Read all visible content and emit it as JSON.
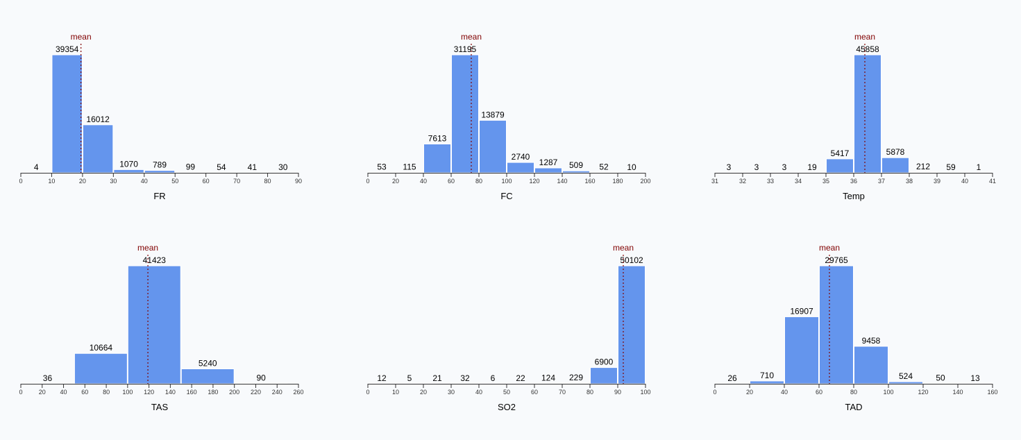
{
  "colors": {
    "bar": "#6495ed",
    "bar_stroke": "#ffffff",
    "mean": "#800000",
    "axis": "#333333",
    "text": "#000000"
  },
  "chart_data": [
    {
      "type": "bar",
      "xlabel": "FR",
      "mean_label": "mean",
      "mean": 19.5,
      "domain": [
        0,
        90
      ],
      "ticks": [
        0,
        10,
        20,
        30,
        40,
        50,
        60,
        70,
        80,
        90
      ],
      "bins": [
        {
          "x0": 0,
          "x1": 10,
          "count": 4
        },
        {
          "x0": 10,
          "x1": 20,
          "count": 39354
        },
        {
          "x0": 20,
          "x1": 30,
          "count": 16012
        },
        {
          "x0": 30,
          "x1": 40,
          "count": 1070
        },
        {
          "x0": 40,
          "x1": 50,
          "count": 789
        },
        {
          "x0": 50,
          "x1": 60,
          "count": 99
        },
        {
          "x0": 60,
          "x1": 70,
          "count": 54
        },
        {
          "x0": 70,
          "x1": 80,
          "count": 41
        },
        {
          "x0": 80,
          "x1": 90,
          "count": 30
        }
      ]
    },
    {
      "type": "bar",
      "xlabel": "FC",
      "mean_label": "mean",
      "mean": 74.5,
      "domain": [
        0,
        200
      ],
      "ticks": [
        0,
        20,
        40,
        60,
        80,
        100,
        120,
        140,
        160,
        180,
        200
      ],
      "bins": [
        {
          "x0": 0,
          "x1": 20,
          "count": 53
        },
        {
          "x0": 20,
          "x1": 40,
          "count": 115
        },
        {
          "x0": 40,
          "x1": 60,
          "count": 7613
        },
        {
          "x0": 60,
          "x1": 80,
          "count": 31195
        },
        {
          "x0": 80,
          "x1": 100,
          "count": 13879
        },
        {
          "x0": 100,
          "x1": 120,
          "count": 2740
        },
        {
          "x0": 120,
          "x1": 140,
          "count": 1287
        },
        {
          "x0": 140,
          "x1": 160,
          "count": 509
        },
        {
          "x0": 160,
          "x1": 180,
          "count": 52
        },
        {
          "x0": 180,
          "x1": 200,
          "count": 10
        }
      ]
    },
    {
      "type": "bar",
      "xlabel": "Temp",
      "mean_label": "mean",
      "mean": 36.4,
      "domain": [
        31,
        41
      ],
      "ticks": [
        31,
        32,
        33,
        34,
        35,
        36,
        37,
        38,
        39,
        40,
        41
      ],
      "bins": [
        {
          "x0": 31,
          "x1": 32,
          "count": 3
        },
        {
          "x0": 32,
          "x1": 33,
          "count": 3
        },
        {
          "x0": 33,
          "x1": 34,
          "count": 3
        },
        {
          "x0": 34,
          "x1": 35,
          "count": 19
        },
        {
          "x0": 35,
          "x1": 36,
          "count": 5417
        },
        {
          "x0": 36,
          "x1": 37,
          "count": 45858
        },
        {
          "x0": 37,
          "x1": 38,
          "count": 5878
        },
        {
          "x0": 38,
          "x1": 39,
          "count": 212
        },
        {
          "x0": 39,
          "x1": 40,
          "count": 59
        },
        {
          "x0": 40,
          "x1": 41,
          "count": 1
        }
      ]
    },
    {
      "type": "bar",
      "xlabel": "TAS",
      "mean_label": "mean",
      "mean": 119,
      "domain": [
        0,
        260
      ],
      "ticks": [
        0,
        20,
        40,
        60,
        80,
        100,
        120,
        140,
        160,
        180,
        200,
        220,
        240,
        260
      ],
      "bins": [
        {
          "x0": 0,
          "x1": 50,
          "count": 36
        },
        {
          "x0": 50,
          "x1": 100,
          "count": 10664
        },
        {
          "x0": 100,
          "x1": 150,
          "count": 41423
        },
        {
          "x0": 150,
          "x1": 200,
          "count": 5240
        },
        {
          "x0": 200,
          "x1": 250,
          "count": 90
        }
      ]
    },
    {
      "type": "bar",
      "xlabel": "SO2",
      "mean_label": "mean",
      "mean": 92,
      "domain": [
        0,
        100
      ],
      "ticks": [
        0,
        10,
        20,
        30,
        40,
        50,
        60,
        70,
        80,
        90,
        100
      ],
      "bins": [
        {
          "x0": 0,
          "x1": 10,
          "count": 12
        },
        {
          "x0": 10,
          "x1": 20,
          "count": 5
        },
        {
          "x0": 20,
          "x1": 30,
          "count": 21
        },
        {
          "x0": 30,
          "x1": 40,
          "count": 32
        },
        {
          "x0": 40,
          "x1": 50,
          "count": 6
        },
        {
          "x0": 50,
          "x1": 60,
          "count": 22
        },
        {
          "x0": 60,
          "x1": 70,
          "count": 124
        },
        {
          "x0": 70,
          "x1": 80,
          "count": 229
        },
        {
          "x0": 80,
          "x1": 90,
          "count": 6900
        },
        {
          "x0": 90,
          "x1": 100,
          "count": 50102
        }
      ]
    },
    {
      "type": "bar",
      "xlabel": "TAD",
      "mean_label": "mean",
      "mean": 66,
      "domain": [
        0,
        160
      ],
      "ticks": [
        0,
        20,
        40,
        60,
        80,
        100,
        120,
        140,
        160
      ],
      "bins": [
        {
          "x0": 0,
          "x1": 20,
          "count": 26
        },
        {
          "x0": 20,
          "x1": 40,
          "count": 710
        },
        {
          "x0": 40,
          "x1": 60,
          "count": 16907
        },
        {
          "x0": 60,
          "x1": 80,
          "count": 29765
        },
        {
          "x0": 80,
          "x1": 100,
          "count": 9458
        },
        {
          "x0": 100,
          "x1": 120,
          "count": 524
        },
        {
          "x0": 120,
          "x1": 140,
          "count": 50
        },
        {
          "x0": 140,
          "x1": 160,
          "count": 13
        }
      ]
    }
  ]
}
